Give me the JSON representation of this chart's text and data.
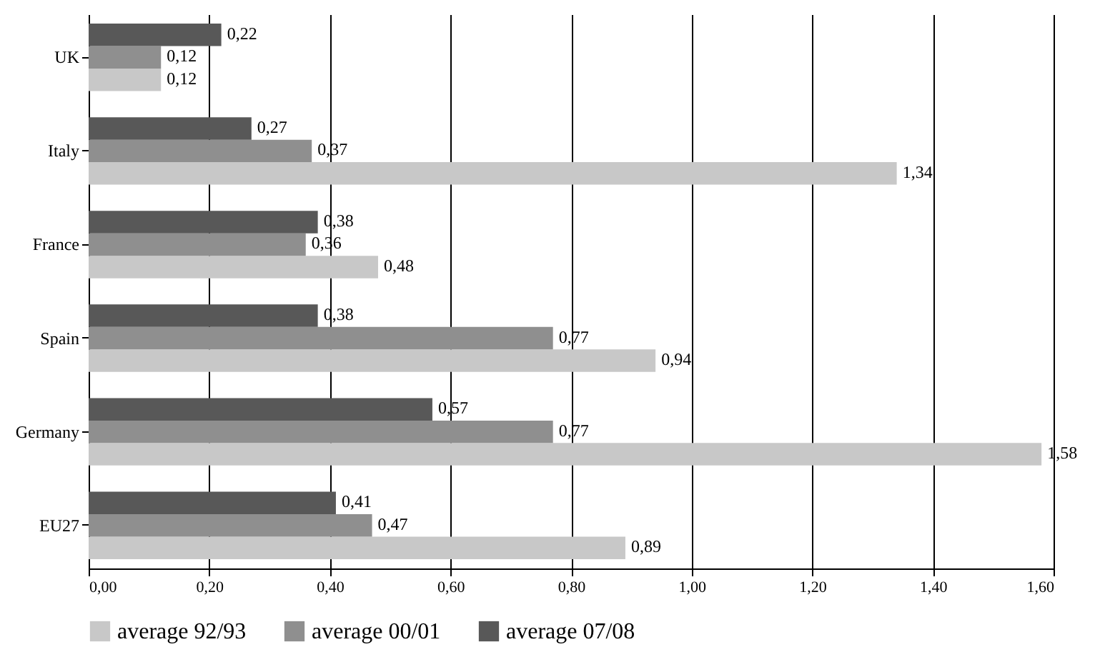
{
  "chart_data": {
    "type": "bar",
    "orientation": "horizontal",
    "categories": [
      "UK",
      "Italy",
      "France",
      "Spain",
      "Germany",
      "EU27"
    ],
    "series": [
      {
        "name": "average 92/93",
        "color": "#c8c8c8",
        "values": [
          0.12,
          1.34,
          0.48,
          0.94,
          1.58,
          0.89
        ],
        "value_labels": [
          "0,12",
          "1,34",
          "0,48",
          "0,94",
          "1,58",
          "0,89"
        ]
      },
      {
        "name": "average 00/01",
        "color": "#8f8f8f",
        "values": [
          0.12,
          0.37,
          0.36,
          0.77,
          0.77,
          0.47
        ],
        "value_labels": [
          "0,12",
          "0,37",
          "0,36",
          "0,77",
          "0,77",
          "0,47"
        ]
      },
      {
        "name": "average 07/08",
        "color": "#585858",
        "values": [
          0.22,
          0.27,
          0.38,
          0.38,
          0.57,
          0.41
        ],
        "value_labels": [
          "0,22",
          "0,27",
          "0,38",
          "0,38",
          "0,57",
          "0,41"
        ]
      }
    ],
    "xlim": [
      0,
      1.6
    ],
    "xticks": [
      {
        "value": 0,
        "label": "0,00"
      },
      {
        "value": 0.2,
        "label": "0,20"
      },
      {
        "value": 0.4,
        "label": "0,40"
      },
      {
        "value": 0.6,
        "label": "0,60"
      },
      {
        "value": 0.8,
        "label": "0,80"
      },
      {
        "value": 1,
        "label": "1,00"
      },
      {
        "value": 1.2,
        "label": "1,20"
      },
      {
        "value": 1.4,
        "label": "1,40"
      },
      {
        "value": 1.6,
        "label": "1,60"
      }
    ],
    "grid": "x",
    "legend": "bottom"
  }
}
